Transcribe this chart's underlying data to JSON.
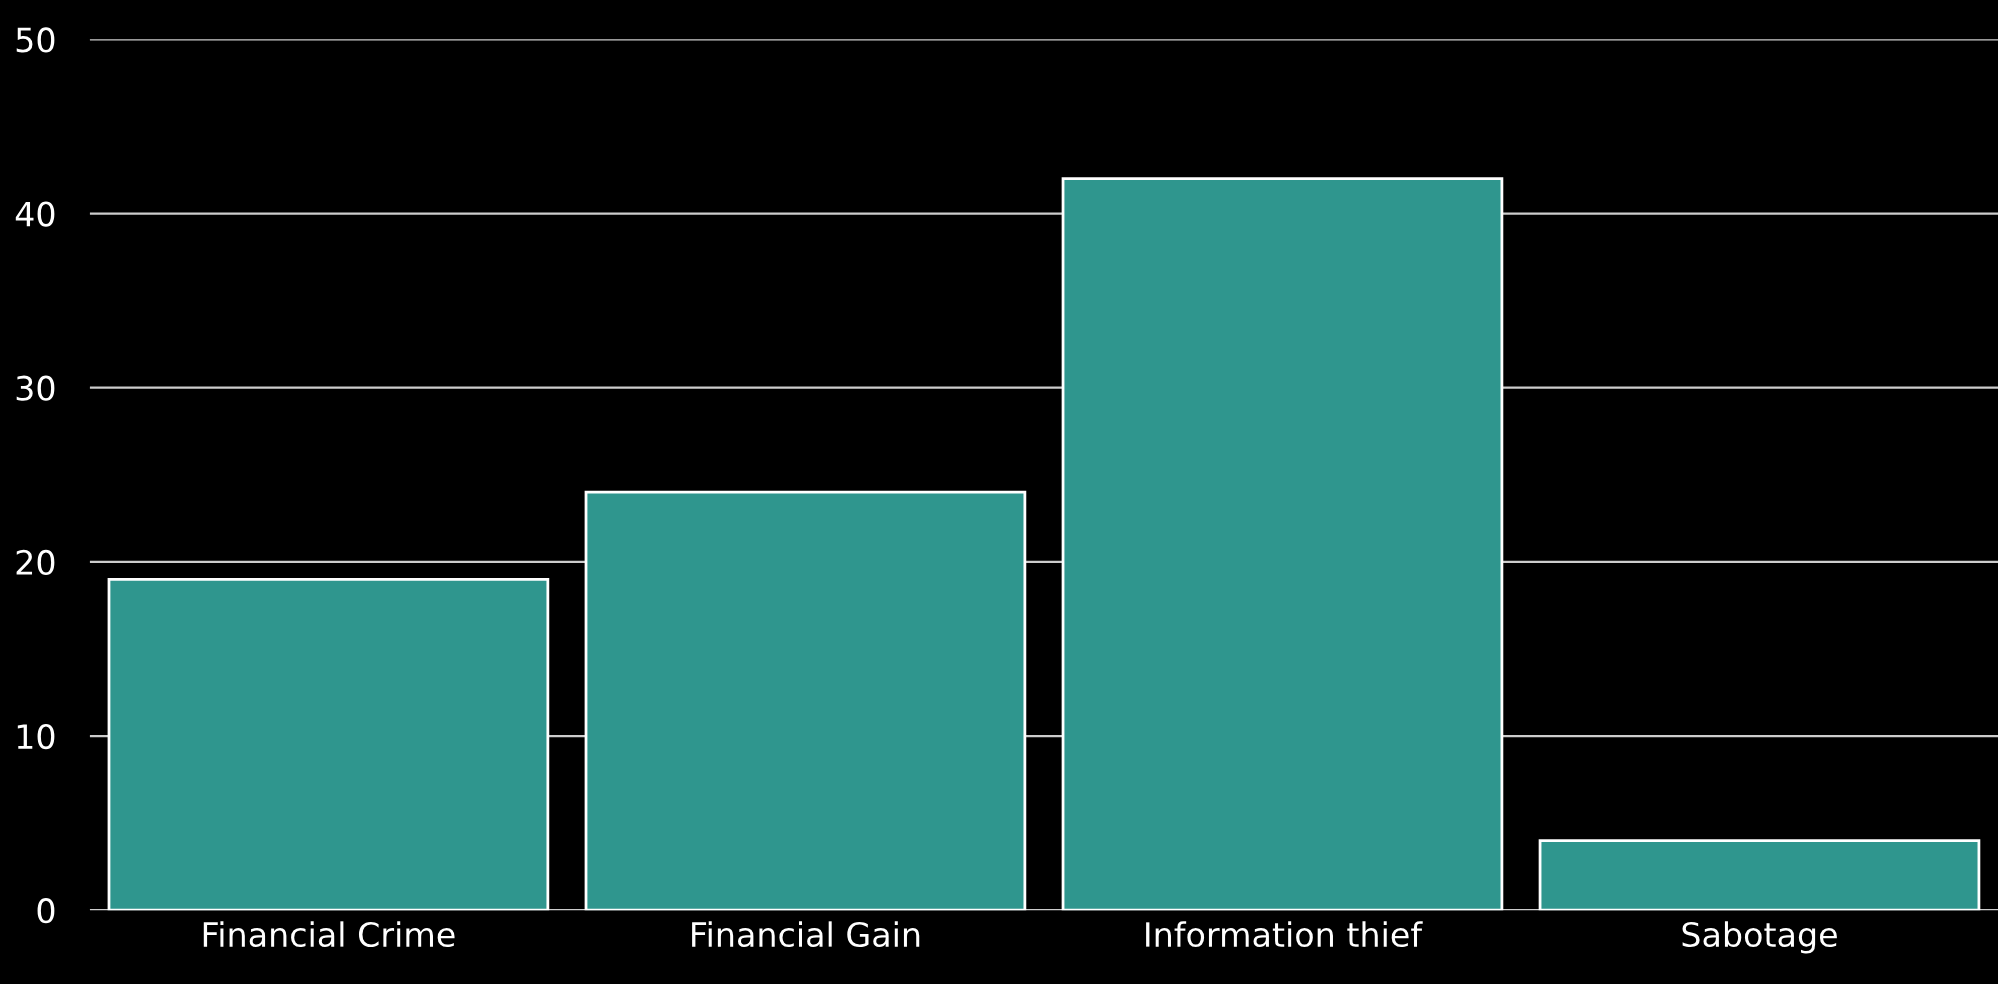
{
  "chart_data": {
    "type": "bar",
    "categories": [
      "Financial Crime",
      "Financial Gain",
      "Information thief",
      "Sabotage"
    ],
    "values": [
      19,
      24,
      42,
      4
    ],
    "color": "#2f968e",
    "ylim": [
      0,
      50
    ],
    "yticks": [
      0,
      10,
      20,
      30,
      40,
      50
    ],
    "grid": "y"
  }
}
